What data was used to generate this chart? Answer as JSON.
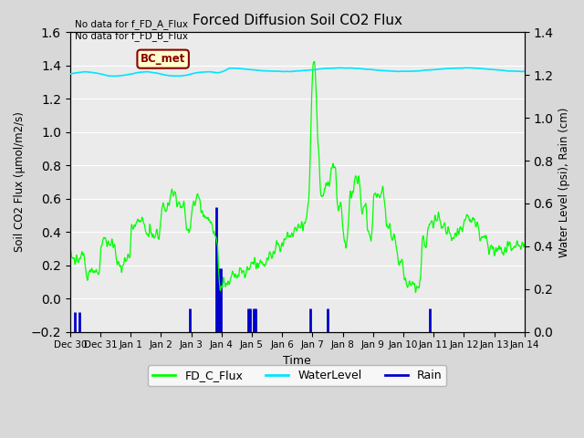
{
  "title": "Forced Diffusion Soil CO2 Flux",
  "xlabel": "Time",
  "ylabel_left": "Soil CO2 Flux (μmol/m2/s)",
  "ylabel_right": "Water Level (psi), Rain (cm)",
  "no_data_text": [
    "No data for f_FD_A_Flux",
    "No data for f_FD_B_Flux"
  ],
  "bc_met_label": "BC_met",
  "ylim_left": [
    -0.2,
    1.6
  ],
  "ylim_right": [
    0.0,
    1.4
  ],
  "yticks_left": [
    -0.2,
    0.0,
    0.2,
    0.4,
    0.6,
    0.8,
    1.0,
    1.2,
    1.4,
    1.6
  ],
  "yticks_right": [
    0.0,
    0.2,
    0.4,
    0.6,
    0.8,
    1.0,
    1.2,
    1.4
  ],
  "bg_color": "#d8d8d8",
  "plot_bg_color": "#ebebeb",
  "grid_color": "#ffffff",
  "flux_color": "#00ff00",
  "water_color": "#00e5ff",
  "rain_color": "#0000cc",
  "legend_items": [
    "FD_C_Flux",
    "WaterLevel",
    "Rain"
  ],
  "legend_colors": [
    "#00ff00",
    "#00e5ff",
    "#0000cc"
  ],
  "rain_events": [
    0.15,
    0.32,
    3.95,
    4.82,
    4.87,
    4.92,
    4.97,
    5.88,
    5.95,
    6.05,
    6.12,
    7.92,
    8.5,
    11.87
  ],
  "rain_top_y": [
    -0.08,
    -0.08,
    -0.06,
    0.55,
    0.18,
    0.18,
    0.18,
    -0.06,
    -0.06,
    -0.06,
    -0.06,
    -0.06,
    -0.06,
    -0.06
  ]
}
